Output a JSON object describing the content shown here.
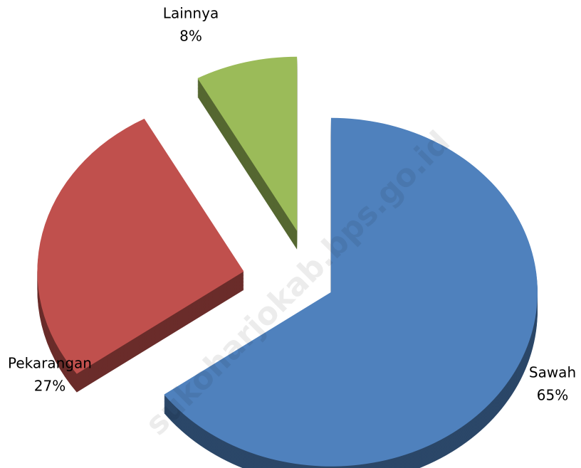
{
  "chart_data": {
    "type": "pie",
    "categories": [
      "Sawah",
      "Pekarangan",
      "Lainnya"
    ],
    "values": [
      65,
      27,
      8
    ],
    "value_labels": [
      "65%",
      "27%",
      "8%"
    ],
    "colors": [
      "#4f81bd",
      "#c0504d",
      "#9bbb59"
    ],
    "watermark": "sukoharjokab.bps.go.id"
  }
}
